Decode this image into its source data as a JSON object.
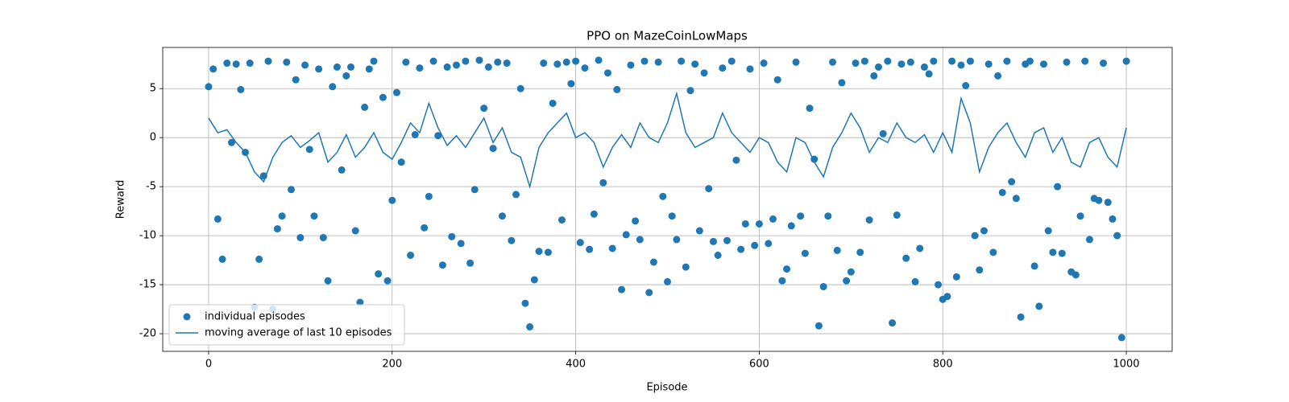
{
  "chart_data": {
    "type": "scatter",
    "title": "PPO on MazeCoinLowMaps",
    "xlabel": "Episode",
    "ylabel": "Reward",
    "xlim": [
      -50,
      1050
    ],
    "ylim": [
      -21.8,
      9.2
    ],
    "xticks": [
      0,
      200,
      400,
      600,
      800,
      1000
    ],
    "yticks": [
      -20,
      -15,
      -10,
      -5,
      0,
      5
    ],
    "grid": true,
    "legend": "lower left",
    "series": [
      {
        "name": "individual episodes",
        "type": "scatter",
        "color": "#1f77b4",
        "x": [
          0,
          5,
          10,
          15,
          20,
          25,
          30,
          35,
          40,
          45,
          50,
          55,
          60,
          65,
          70,
          75,
          80,
          85,
          90,
          95,
          100,
          105,
          110,
          115,
          120,
          125,
          130,
          135,
          140,
          145,
          150,
          155,
          160,
          165,
          170,
          175,
          180,
          185,
          190,
          195,
          200,
          205,
          210,
          215,
          220,
          225,
          230,
          235,
          240,
          245,
          250,
          255,
          260,
          265,
          270,
          275,
          280,
          285,
          290,
          295,
          300,
          305,
          310,
          315,
          320,
          325,
          330,
          335,
          340,
          345,
          350,
          355,
          360,
          365,
          370,
          375,
          380,
          385,
          390,
          395,
          400,
          405,
          410,
          415,
          420,
          425,
          430,
          435,
          440,
          445,
          450,
          455,
          460,
          465,
          470,
          475,
          480,
          485,
          490,
          495,
          500,
          505,
          510,
          515,
          520,
          525,
          530,
          535,
          540,
          545,
          550,
          555,
          560,
          565,
          570,
          575,
          580,
          585,
          590,
          595,
          600,
          605,
          610,
          615,
          620,
          625,
          630,
          635,
          640,
          645,
          650,
          655,
          660,
          665,
          670,
          675,
          680,
          685,
          690,
          695,
          700,
          705,
          710,
          715,
          720,
          725,
          730,
          735,
          740,
          745,
          750,
          755,
          760,
          765,
          770,
          775,
          780,
          785,
          790,
          795,
          800,
          805,
          810,
          815,
          820,
          825,
          830,
          835,
          840,
          845,
          850,
          855,
          860,
          865,
          870,
          875,
          880,
          885,
          890,
          895,
          900,
          905,
          910,
          915,
          920,
          925,
          930,
          935,
          940,
          945,
          950,
          955,
          960,
          965,
          970,
          975,
          980,
          985,
          990,
          995,
          1000
        ],
        "values": [
          5.2,
          7.0,
          -8.3,
          -12.4,
          7.6,
          -0.5,
          7.5,
          4.9,
          -1.5,
          7.6,
          -17.3,
          -12.4,
          -3.9,
          7.8,
          -17.5,
          -9.3,
          -8.0,
          7.7,
          -5.3,
          5.9,
          -10.2,
          7.4,
          -1.2,
          -8.0,
          7.0,
          -10.2,
          -14.6,
          5.2,
          7.2,
          -3.3,
          6.3,
          7.2,
          -9.5,
          -16.8,
          3.1,
          7.0,
          7.8,
          -13.9,
          4.1,
          -14.6,
          -6.4,
          4.6,
          -2.5,
          7.7,
          -12.0,
          0.3,
          7.1,
          -9.2,
          -6.0,
          7.8,
          0.2,
          -13.0,
          7.2,
          -10.1,
          7.4,
          -10.8,
          7.8,
          -12.8,
          -5.3,
          7.9,
          3.0,
          7.2,
          -1.1,
          7.7,
          -8.0,
          7.6,
          -10.5,
          -5.8,
          5.0,
          -16.9,
          -19.3,
          -14.5,
          -11.6,
          7.6,
          -11.7,
          3.5,
          7.5,
          -8.4,
          7.7,
          5.5,
          7.8,
          -10.7,
          7.1,
          -11.4,
          -7.8,
          7.9,
          -4.6,
          6.6,
          -11.3,
          4.9,
          -15.5,
          -9.9,
          7.4,
          -8.5,
          -10.4,
          7.8,
          -15.8,
          -12.7,
          7.7,
          -6.0,
          -14.7,
          -8.0,
          -10.4,
          7.8,
          -13.2,
          4.8,
          7.5,
          -9.5,
          6.6,
          -5.2,
          -10.6,
          -12.0,
          7.1,
          -10.5,
          7.8,
          -2.3,
          -11.4,
          -8.8,
          7.0,
          -11.0,
          -8.8,
          7.6,
          -10.8,
          -8.3,
          5.9,
          -14.6,
          -13.4,
          -9.0,
          7.7,
          -8.0,
          -11.8,
          3.0,
          -2.2,
          -19.2,
          -15.2,
          -8.0,
          7.7,
          -11.5,
          5.6,
          -14.6,
          -13.7,
          7.6,
          -11.7,
          7.8,
          -8.4,
          6.3,
          7.2,
          0.4,
          7.8,
          -18.9,
          -7.9,
          7.5,
          -12.3,
          7.7,
          -14.7,
          -11.3,
          7.2,
          6.5,
          7.8,
          -15.0,
          -16.5,
          -16.2,
          7.8,
          -14.2,
          7.4,
          5.3,
          7.8,
          -10.0,
          -13.5,
          -9.5,
          7.5,
          -11.7,
          6.3,
          -5.6,
          7.8,
          -4.5,
          -6.2,
          -18.3,
          7.5,
          7.8,
          -13.1,
          -17.2,
          7.5,
          -9.5,
          -11.7,
          -5.0,
          -11.8,
          7.7,
          -13.7,
          -14.0,
          -8.0,
          7.8,
          -10.4,
          -6.2,
          -6.4,
          7.6,
          -6.6,
          -8.3,
          -10.0,
          -20.4,
          7.8
        ]
      },
      {
        "name": "moving average of last 10 episodes",
        "type": "line",
        "color": "#1f77b4",
        "x": [
          0,
          10,
          20,
          30,
          40,
          50,
          60,
          70,
          80,
          90,
          100,
          110,
          120,
          130,
          140,
          150,
          160,
          170,
          180,
          190,
          200,
          210,
          220,
          230,
          240,
          250,
          260,
          270,
          280,
          290,
          300,
          310,
          320,
          330,
          340,
          350,
          360,
          370,
          380,
          390,
          400,
          410,
          420,
          430,
          440,
          450,
          460,
          470,
          480,
          490,
          500,
          510,
          520,
          530,
          540,
          550,
          560,
          570,
          580,
          590,
          600,
          610,
          620,
          630,
          640,
          650,
          660,
          670,
          680,
          690,
          700,
          710,
          720,
          730,
          740,
          750,
          760,
          770,
          780,
          790,
          800,
          810,
          820,
          830,
          840,
          850,
          860,
          870,
          880,
          890,
          900,
          910,
          920,
          930,
          940,
          950,
          960,
          970,
          980,
          990,
          1000
        ],
        "values": [
          2.0,
          0.5,
          0.8,
          -0.5,
          -1.5,
          -3.5,
          -4.5,
          -2.0,
          -0.5,
          0.2,
          -1.0,
          -0.3,
          0.5,
          -2.5,
          -1.5,
          0.3,
          -2.0,
          -1.0,
          0.5,
          -1.5,
          -2.2,
          -0.5,
          1.5,
          0.5,
          3.5,
          1.0,
          -0.8,
          0.2,
          -1.0,
          0.5,
          2.0,
          -0.5,
          1.0,
          -1.5,
          -2.0,
          -5.0,
          -1.0,
          0.5,
          1.5,
          2.5,
          0.0,
          0.5,
          -0.5,
          -3.0,
          -1.0,
          0.3,
          -1.0,
          1.5,
          0.0,
          -0.5,
          1.5,
          4.5,
          0.5,
          -1.0,
          -0.5,
          0.0,
          2.5,
          0.5,
          -0.5,
          -1.5,
          0.0,
          -0.5,
          -2.5,
          -3.5,
          0.0,
          -0.5,
          -2.5,
          -4.0,
          -1.0,
          0.5,
          2.5,
          1.0,
          -1.5,
          0.0,
          -0.5,
          1.5,
          0.0,
          -0.5,
          0.3,
          -1.5,
          0.5,
          -1.5,
          4.0,
          1.5,
          -3.5,
          -1.0,
          0.5,
          1.5,
          -0.5,
          -2.0,
          0.5,
          1.0,
          -1.5,
          0.0,
          -2.5,
          -3.0,
          -0.5,
          0.0,
          -2.0,
          -3.0,
          1.0
        ]
      }
    ]
  }
}
